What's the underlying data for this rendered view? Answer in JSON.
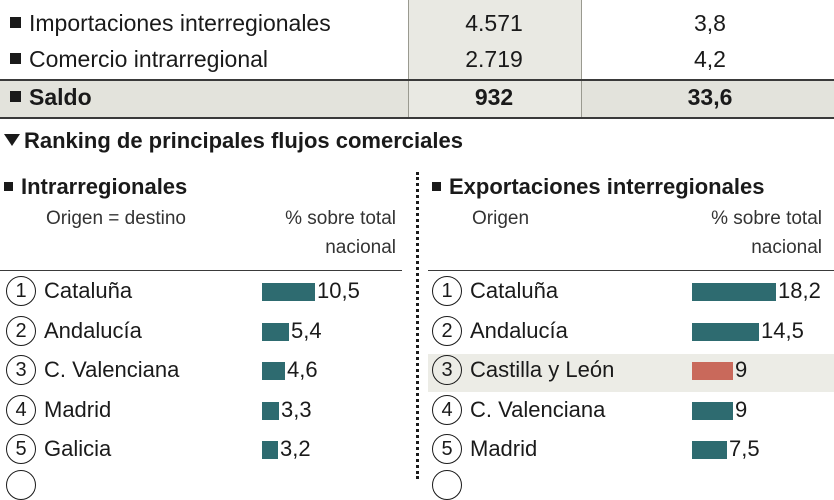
{
  "summary": {
    "rows": [
      {
        "label": "Importaciones interregionales",
        "value1": "4.571",
        "value2": "3,8"
      },
      {
        "label": "Comercio intrarregional",
        "value1": "2.719",
        "value2": "4,2"
      },
      {
        "label": "Saldo",
        "value1": "932",
        "value2": "33,6"
      }
    ]
  },
  "ranking": {
    "title": "Ranking de principales flujos comerciales"
  },
  "chart_data": [
    {
      "type": "bar",
      "title": "Intrarregionales",
      "category_header": "Origen = destino",
      "value_header": "% sobre total nacional",
      "categories": [
        "Cataluña",
        "Andalucía",
        "C. Valenciana",
        "Madrid",
        "Galicia"
      ],
      "ranks": [
        "1",
        "2",
        "3",
        "4",
        "5"
      ],
      "values": [
        10.5,
        5.4,
        4.6,
        3.3,
        3.2
      ],
      "value_labels": [
        "10,5",
        "5,4",
        "4,6",
        "3,3",
        "3,2"
      ],
      "bar_color": "#2e6b70"
    },
    {
      "type": "bar",
      "title": "Exportaciones interregionales",
      "category_header": "Origen",
      "value_header": "% sobre total nacional",
      "categories": [
        "Cataluña",
        "Andalucía",
        "Castilla y León",
        "C. Valenciana",
        "Madrid"
      ],
      "ranks": [
        "1",
        "2",
        "3",
        "4",
        "5"
      ],
      "values": [
        18.2,
        14.5,
        9,
        9,
        7.5
      ],
      "value_labels": [
        "18,2",
        "14,5",
        "9",
        "9",
        "7,5"
      ],
      "bar_color": "#2e6b70",
      "highlight_category": "Castilla y León",
      "highlight_color": "#c9695b"
    }
  ]
}
